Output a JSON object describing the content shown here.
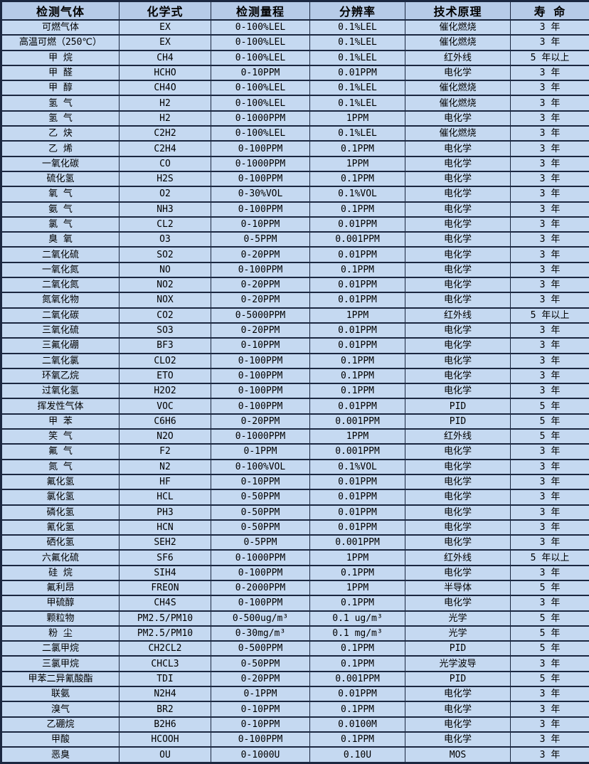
{
  "colors": {
    "header_bg": "#b6cbe8",
    "row_bg": "#c5d9f1",
    "border": "#1b2740",
    "text": "#000000"
  },
  "table": {
    "columns": [
      "检测气体",
      "化学式",
      "检测量程",
      "分辨率",
      "技术原理",
      "寿 命"
    ],
    "rows": [
      {
        "gas": "可燃气体",
        "formula": "EX",
        "range": "0-100%LEL",
        "resolution": "0.1%LEL",
        "principle": "催化燃烧",
        "life": "3 年"
      },
      {
        "gas": "高温可燃（250℃）",
        "formula": "EX",
        "range": "0-100%LEL",
        "resolution": "0.1%LEL",
        "principle": "催化燃烧",
        "life": "3 年"
      },
      {
        "gas": "甲 烷",
        "formula": "CH4",
        "range": "0-100%LEL",
        "resolution": "0.1%LEL",
        "principle": "红外线",
        "life": "5 年以上"
      },
      {
        "gas": "甲 醛",
        "formula": "HCHO",
        "range": "0-10PPM",
        "resolution": "0.01PPM",
        "principle": "电化学",
        "life": "3 年"
      },
      {
        "gas": "甲 醇",
        "formula": "CH4O",
        "range": "0-100%LEL",
        "resolution": "0.1%LEL",
        "principle": "催化燃烧",
        "life": "3 年"
      },
      {
        "gas": "氢 气",
        "formula": "H2",
        "range": "0-100%LEL",
        "resolution": "0.1%LEL",
        "principle": "催化燃烧",
        "life": "3 年"
      },
      {
        "gas": "氢 气",
        "formula": "H2",
        "range": "0-1000PPM",
        "resolution": "1PPM",
        "principle": "电化学",
        "life": "3 年"
      },
      {
        "gas": "乙 炔",
        "formula": "C2H2",
        "range": "0-100%LEL",
        "resolution": "0.1%LEL",
        "principle": "催化燃烧",
        "life": "3 年"
      },
      {
        "gas": "乙 烯",
        "formula": "C2H4",
        "range": "0-100PPM",
        "resolution": "0.1PPM",
        "principle": "电化学",
        "life": "3 年"
      },
      {
        "gas": "一氧化碳",
        "formula": "CO",
        "range": "0-1000PPM",
        "resolution": "1PPM",
        "principle": "电化学",
        "life": "3 年"
      },
      {
        "gas": "硫化氢",
        "formula": "H2S",
        "range": "0-100PPM",
        "resolution": "0.1PPM",
        "principle": "电化学",
        "life": "3 年"
      },
      {
        "gas": "氧 气",
        "formula": "O2",
        "range": "0-30%VOL",
        "resolution": "0.1%VOL",
        "principle": "电化学",
        "life": "3 年"
      },
      {
        "gas": "氨 气",
        "formula": "NH3",
        "range": "0-100PPM",
        "resolution": "0.1PPM",
        "principle": "电化学",
        "life": "3 年"
      },
      {
        "gas": "氯 气",
        "formula": "CL2",
        "range": "0-10PPM",
        "resolution": "0.01PPM",
        "principle": "电化学",
        "life": "3 年"
      },
      {
        "gas": "臭 氧",
        "formula": "O3",
        "range": "0-5PPM",
        "resolution": "0.001PPM",
        "principle": "电化学",
        "life": "3 年"
      },
      {
        "gas": "二氧化硫",
        "formula": "SO2",
        "range": "0-20PPM",
        "resolution": "0.01PPM",
        "principle": "电化学",
        "life": "3 年"
      },
      {
        "gas": "一氧化氮",
        "formula": "NO",
        "range": "0-100PPM",
        "resolution": "0.1PPM",
        "principle": "电化学",
        "life": "3 年"
      },
      {
        "gas": "二氧化氮",
        "formula": "NO2",
        "range": "0-20PPM",
        "resolution": "0.01PPM",
        "principle": "电化学",
        "life": "3 年"
      },
      {
        "gas": "氮氧化物",
        "formula": "NOX",
        "range": "0-20PPM",
        "resolution": "0.01PPM",
        "principle": "电化学",
        "life": "3 年"
      },
      {
        "gas": "二氧化碳",
        "formula": "CO2",
        "range": "0-5000PPM",
        "resolution": "1PPM",
        "principle": "红外线",
        "life": "5 年以上"
      },
      {
        "gas": "三氧化硫",
        "formula": "SO3",
        "range": "0-20PPM",
        "resolution": "0.01PPM",
        "principle": "电化学",
        "life": "3 年"
      },
      {
        "gas": "三氟化硼",
        "formula": "BF3",
        "range": "0-10PPM",
        "resolution": "0.01PPM",
        "principle": "电化学",
        "life": "3 年"
      },
      {
        "gas": "二氧化氯",
        "formula": "CLO2",
        "range": "0-100PPM",
        "resolution": "0.1PPM",
        "principle": "电化学",
        "life": "3 年"
      },
      {
        "gas": "环氧乙烷",
        "formula": "ETO",
        "range": "0-100PPM",
        "resolution": "0.1PPM",
        "principle": "电化学",
        "life": "3 年"
      },
      {
        "gas": "过氧化氢",
        "formula": "H2O2",
        "range": "0-100PPM",
        "resolution": "0.1PPM",
        "principle": "电化学",
        "life": "3 年"
      },
      {
        "gas": "挥发性气体",
        "formula": "VOC",
        "range": "0-100PPM",
        "resolution": "0.01PPM",
        "principle": "PID",
        "life": "5 年"
      },
      {
        "gas": "甲 苯",
        "formula": "C6H6",
        "range": "0-20PPM",
        "resolution": "0.001PPM",
        "principle": "PID",
        "life": "5 年"
      },
      {
        "gas": "笑 气",
        "formula": "N2O",
        "range": "0-1000PPM",
        "resolution": "1PPM",
        "principle": "红外线",
        "life": "5 年"
      },
      {
        "gas": "氟 气",
        "formula": "F2",
        "range": "0-1PPM",
        "resolution": "0.001PPM",
        "principle": "电化学",
        "life": "3 年"
      },
      {
        "gas": "氮 气",
        "formula": "N2",
        "range": "0-100%VOL",
        "resolution": "0.1%VOL",
        "principle": "电化学",
        "life": "3 年"
      },
      {
        "gas": "氟化氢",
        "formula": "HF",
        "range": "0-10PPM",
        "resolution": "0.01PPM",
        "principle": "电化学",
        "life": "3 年"
      },
      {
        "gas": "氯化氢",
        "formula": "HCL",
        "range": "0-50PPM",
        "resolution": "0.01PPM",
        "principle": "电化学",
        "life": "3 年"
      },
      {
        "gas": "磷化氢",
        "formula": "PH3",
        "range": "0-50PPM",
        "resolution": "0.01PPM",
        "principle": "电化学",
        "life": "3 年"
      },
      {
        "gas": "氰化氢",
        "formula": "HCN",
        "range": "0-50PPM",
        "resolution": "0.01PPM",
        "principle": "电化学",
        "life": "3 年"
      },
      {
        "gas": "硒化氢",
        "formula": "SEH2",
        "range": "0-5PPM",
        "resolution": "0.001PPM",
        "principle": "电化学",
        "life": "3 年"
      },
      {
        "gas": "六氟化硫",
        "formula": "SF6",
        "range": "0-1000PPM",
        "resolution": "1PPM",
        "principle": "红外线",
        "life": "5 年以上"
      },
      {
        "gas": "硅 烷",
        "formula": "SIH4",
        "range": "0-100PPM",
        "resolution": "0.1PPM",
        "principle": "电化学",
        "life": "3 年"
      },
      {
        "gas": "氟利昂",
        "formula": "FREON",
        "range": "0-2000PPM",
        "resolution": "1PPM",
        "principle": "半导体",
        "life": "5 年"
      },
      {
        "gas": "甲硫醇",
        "formula": "CH4S",
        "range": "0-100PPM",
        "resolution": "0.1PPM",
        "principle": "电化学",
        "life": "3 年"
      },
      {
        "gas": "颗粒物",
        "formula": "PM2.5/PM10",
        "range": "0-500ug/m³",
        "resolution": "0.1 ug/m³",
        "principle": "光学",
        "life": "5 年"
      },
      {
        "gas": "粉 尘",
        "formula": "PM2.5/PM10",
        "range": "0-30mg/m³",
        "resolution": "0.1 mg/m³",
        "principle": "光学",
        "life": "5 年"
      },
      {
        "gas": "二氯甲烷",
        "formula": "CH2CL2",
        "range": "0-500PPM",
        "resolution": "0.1PPM",
        "principle": "PID",
        "life": "5 年"
      },
      {
        "gas": "三氯甲烷",
        "formula": "CHCL3",
        "range": "0-50PPM",
        "resolution": "0.1PPM",
        "principle": "光学波导",
        "life": "3 年"
      },
      {
        "gas": "甲苯二异氰酸酯",
        "formula": "TDI",
        "range": "0-20PPM",
        "resolution": "0.001PPM",
        "principle": "PID",
        "life": "5 年"
      },
      {
        "gas": "联氨",
        "formula": "N2H4",
        "range": "0-1PPM",
        "resolution": "0.01PPM",
        "principle": "电化学",
        "life": "3 年"
      },
      {
        "gas": "溴气",
        "formula": "BR2",
        "range": "0-10PPM",
        "resolution": "0.1PPM",
        "principle": "电化学",
        "life": "3 年"
      },
      {
        "gas": "乙硼烷",
        "formula": "B2H6",
        "range": "0-10PPM",
        "resolution": "0.0100M",
        "principle": "电化学",
        "life": "3 年"
      },
      {
        "gas": "甲酸",
        "formula": "HCOOH",
        "range": "0-100PPM",
        "resolution": "0.1PPM",
        "principle": "电化学",
        "life": "3 年"
      },
      {
        "gas": "恶臭",
        "formula": "OU",
        "range": "0-1000U",
        "resolution": "0.10U",
        "principle": "MOS",
        "life": "3 年"
      }
    ]
  }
}
